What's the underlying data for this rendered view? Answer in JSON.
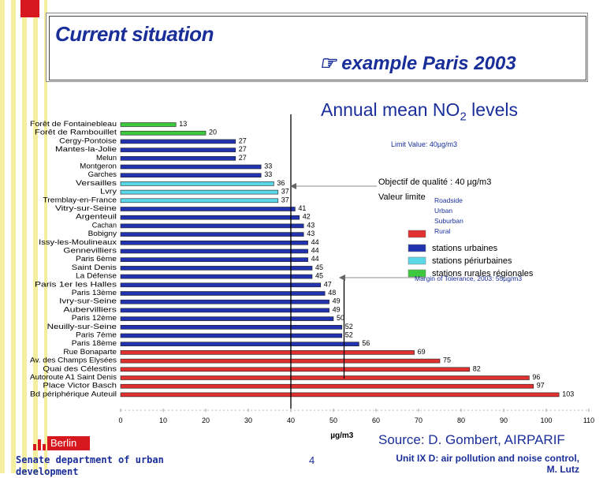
{
  "header": {
    "title": "Current situation",
    "subtitle_icon": "pointing-hand-icon",
    "subtitle": "example Paris 2003"
  },
  "chart_title": "Annual mean NO2 levels",
  "chart_data": {
    "type": "bar",
    "orientation": "horizontal",
    "title": "Annual mean NO2 levels",
    "xlabel": "µg/m3",
    "xlim": [
      0,
      110
    ],
    "xticks": [
      0,
      10,
      20,
      30,
      40,
      50,
      60,
      70,
      80,
      90,
      100,
      110
    ],
    "categories": [
      "Forêt de Fontainebleau",
      "Forêt de Rambouillet",
      "Cergy-Pontoise",
      "Mantes-la-Jolie",
      "Melun",
      "Montgeron",
      "Garches",
      "Versailles",
      "Lvry",
      "Tremblay-en-France",
      "Vitry-sur-Seine",
      "Argenteuil",
      "Cachan",
      "Bobigny",
      "Issy-les-Moulineaux",
      "Gennevilliers",
      "Paris 6ème",
      "Saint Denis",
      "La Défense",
      "Paris 1er les Halles",
      "Paris 13ème",
      "Ivry-sur-Seine",
      "Aubervilliers",
      "Paris 12ème",
      "Neuilly-sur-Seine",
      "Paris 7ème",
      "Paris 18ème",
      "Rue Bonaparte",
      "Av. des Champs Elysées",
      "Quai des Célestins",
      "Autoroute A1 Saint Denis",
      "Place Victor Basch",
      "Bd périphérique Auteuil"
    ],
    "values": [
      13,
      20,
      27,
      27,
      27,
      33,
      33,
      36,
      37,
      37,
      41,
      42,
      43,
      43,
      44,
      44,
      44,
      45,
      45,
      47,
      48,
      49,
      49,
      50,
      52,
      52,
      56,
      69,
      75,
      82,
      96,
      97,
      103
    ],
    "station_type": [
      "rural",
      "rural",
      "urban",
      "urban",
      "urban",
      "urban",
      "urban",
      "suburban",
      "suburban",
      "suburban",
      "urban",
      "urban",
      "urban",
      "urban",
      "urban",
      "urban",
      "urban",
      "urban",
      "urban",
      "urban",
      "urban",
      "urban",
      "urban",
      "urban",
      "urban",
      "urban",
      "urban",
      "roadside",
      "roadside",
      "roadside",
      "roadside",
      "roadside",
      "roadside"
    ],
    "colors": {
      "roadside": "#e03030",
      "urban": "#2233b0",
      "suburban": "#5ad8e8",
      "rural": "#3ec83e"
    },
    "reference_lines": [
      {
        "value": 40,
        "label": "Limit Value: 40µg/m3"
      },
      {
        "value": 55,
        "label": "Margin of Tolerance, 2003: 55µg/m3"
      }
    ],
    "annotations": {
      "quality_objective": "Objectif de qualité : 40 µg/m3",
      "limit_value": "Valeur limite"
    },
    "legend_en": [
      "Roadside",
      "Urban",
      "Suburban",
      "Rural"
    ],
    "legend_fr": [
      "stations urbaines",
      "stations périurbaines",
      "stations rurales régionales"
    ]
  },
  "source": "Source: D. Gombert, AIRPARIF",
  "footer": {
    "logo_text": "Berlin",
    "department": "Senate department of urban development",
    "page": "4",
    "unit": "Unit IX D: air pollution and noise control,",
    "author": "M. Lutz"
  }
}
